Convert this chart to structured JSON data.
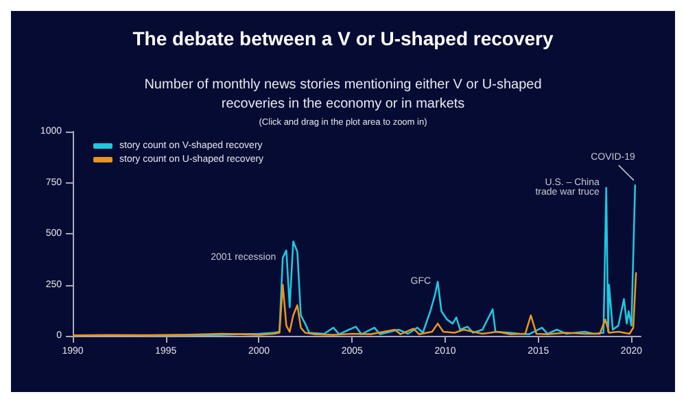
{
  "chart_data": {
    "type": "line",
    "title": "The debate between a V or U-shaped recovery",
    "subtitle": "Number of monthly news stories mentioning either V or U-shaped\nrecoveries in the economy or in markets",
    "annotations": [
      "(Click and drag in the plot area to zoom in)",
      {
        "text": "2001 recession",
        "x": 2001.28,
        "y": 382
      },
      {
        "text": "GFC",
        "x": 2009.6,
        "y": 265
      },
      {
        "text": "U.S. – China\ntrade war truce",
        "x": 2018.65,
        "y": 725
      },
      {
        "text": "COVID-19",
        "x": 2020.2,
        "y": 741
      }
    ],
    "xlim": [
      1990,
      2020.5
    ],
    "xticks": [
      1990,
      1995,
      2000,
      2005,
      2010,
      2015,
      2020
    ],
    "ylim": [
      0,
      1000
    ],
    "yticks": [
      0,
      250,
      500,
      750,
      1000
    ],
    "grid": false,
    "legend": "top left",
    "marker": "none",
    "line_style": "solid",
    "series": [
      {
        "name": "story count on V-shaped recovery",
        "color": "#1ec8e0",
        "x": [
          1994,
          1996,
          1998,
          1999,
          2000,
          2000.8,
          2001.1,
          2001.28,
          2001.47,
          2001.65,
          2001.84,
          2002.06,
          2002.25,
          2002.48,
          2002.7,
          2003.5,
          2004,
          2004.3,
          2005.2,
          2005.5,
          2006.2,
          2006.5,
          2007.5,
          2008,
          2008.5,
          2008.8,
          2009.2,
          2009.45,
          2009.6,
          2009.8,
          2010.1,
          2010.4,
          2010.6,
          2010.8,
          2011.2,
          2011.5,
          2012,
          2012.55,
          2012.7,
          2013.5,
          2014,
          2014.5,
          2015.2,
          2015.5,
          2016,
          2016.5,
          2017.5,
          2018,
          2018.5,
          2018.65,
          2018.75,
          2018.8,
          2019,
          2019.3,
          2019.6,
          2019.75,
          2019.85,
          2020,
          2020.2
        ],
        "values": [
          2,
          3,
          5,
          8,
          10,
          15,
          20,
          382,
          418,
          140,
          462,
          412,
          100,
          60,
          15,
          10,
          40,
          8,
          45,
          8,
          40,
          8,
          30,
          10,
          40,
          15,
          120,
          200,
          265,
          120,
          80,
          60,
          90,
          30,
          45,
          15,
          30,
          130,
          20,
          15,
          10,
          8,
          40,
          10,
          30,
          10,
          20,
          10,
          15,
          725,
          20,
          250,
          30,
          50,
          180,
          60,
          120,
          50,
          741
        ]
      },
      {
        "name": "story count on U-shaped recovery",
        "color": "#e8951e",
        "x": [
          1990,
          1992,
          1994,
          1996,
          1998,
          1999,
          2000,
          2000.8,
          2001.1,
          2001.28,
          2001.47,
          2001.65,
          2001.84,
          2002.06,
          2002.25,
          2002.48,
          2003,
          2004,
          2005,
          2006,
          2007.3,
          2007.6,
          2008.3,
          2008.6,
          2009.3,
          2009.6,
          2009.9,
          2010.5,
          2011,
          2012,
          2012.8,
          2013.5,
          2014.3,
          2014.6,
          2014.9,
          2015.5,
          2016.5,
          2017.5,
          2018.3,
          2018.6,
          2018.8,
          2019.3,
          2019.9,
          2020.1,
          2020.25
        ],
        "values": [
          2,
          4,
          3,
          5,
          10,
          8,
          5,
          10,
          15,
          250,
          50,
          20,
          100,
          150,
          40,
          15,
          8,
          5,
          10,
          8,
          30,
          8,
          35,
          8,
          20,
          60,
          20,
          15,
          30,
          10,
          20,
          8,
          10,
          100,
          10,
          8,
          15,
          10,
          10,
          80,
          15,
          20,
          10,
          40,
          311
        ]
      }
    ]
  }
}
